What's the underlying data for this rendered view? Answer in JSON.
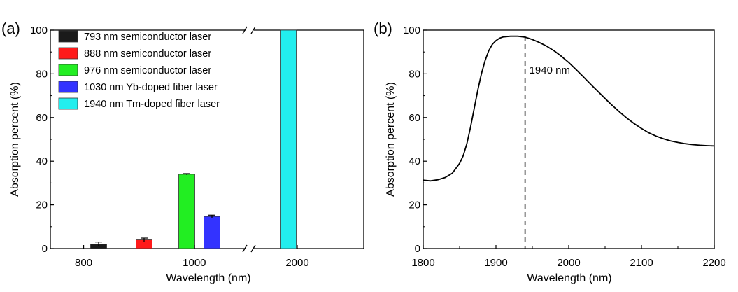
{
  "chart_data": [
    {
      "panel_label": "(a)",
      "type": "bar",
      "xlabel": "Wavelength (nm)",
      "ylabel": "Absorption percent (%)",
      "ylim": [
        0,
        100
      ],
      "yticks": [
        0,
        20,
        40,
        60,
        80,
        100
      ],
      "xticks": [
        "800",
        "1000",
        "2000"
      ],
      "axis_break": true,
      "grid": false,
      "legend_position": "top-left",
      "series": [
        {
          "name": "793 nm semiconductor laser",
          "wavelength": 793,
          "value": 2,
          "error": 1,
          "color": "#1a1a1a"
        },
        {
          "name": "888 nm semiconductor laser",
          "wavelength": 888,
          "value": 4,
          "error": 0.8,
          "color": "#ff1a1a"
        },
        {
          "name": "976 nm semiconductor laser",
          "wavelength": 976,
          "value": 34,
          "error": 0.3,
          "color": "#22ee22"
        },
        {
          "name": "1030 nm Yb-doped fiber laser",
          "wavelength": 1030,
          "value": 14.7,
          "error": 0.6,
          "color": "#3333ff"
        },
        {
          "name": "1940 nm Tm-doped fiber laser",
          "wavelength": 1940,
          "value": 100,
          "error": 0,
          "color": "#22eeee"
        }
      ]
    },
    {
      "panel_label": "(b)",
      "type": "line",
      "xlabel": "Wavelength (nm)",
      "ylabel": "Absorption percent (%)",
      "xlim": [
        1800,
        2200
      ],
      "ylim": [
        0,
        100
      ],
      "xticks": [
        1800,
        1900,
        2000,
        2100,
        2200
      ],
      "yticks": [
        0,
        20,
        40,
        60,
        80,
        100
      ],
      "grid": false,
      "annotation": {
        "label": "1940 nm",
        "x": 1940
      },
      "series": [
        {
          "x": [
            1800,
            1810,
            1820,
            1830,
            1840,
            1850,
            1855,
            1860,
            1865,
            1870,
            1875,
            1880,
            1885,
            1890,
            1895,
            1900,
            1905,
            1910,
            1920,
            1930,
            1940,
            1950,
            1960,
            1970,
            1980,
            1990,
            2000,
            2010,
            2020,
            2030,
            2040,
            2050,
            2060,
            2070,
            2080,
            2090,
            2100,
            2110,
            2120,
            2130,
            2140,
            2150,
            2160,
            2170,
            2180,
            2190,
            2200
          ],
          "y": [
            31.3,
            31.0,
            31.5,
            32.5,
            34.5,
            39.0,
            42.5,
            48.0,
            55.5,
            64.0,
            72.5,
            80.0,
            86.0,
            90.5,
            93.5,
            95.2,
            96.3,
            96.9,
            97.2,
            97.2,
            96.8,
            95.7,
            94.3,
            92.6,
            90.5,
            88.0,
            85.2,
            82.0,
            78.7,
            75.3,
            72.0,
            68.7,
            65.5,
            62.5,
            59.7,
            57.2,
            55.0,
            53.0,
            51.5,
            50.3,
            49.3,
            48.6,
            48.0,
            47.6,
            47.3,
            47.1,
            47.0
          ]
        }
      ]
    }
  ]
}
